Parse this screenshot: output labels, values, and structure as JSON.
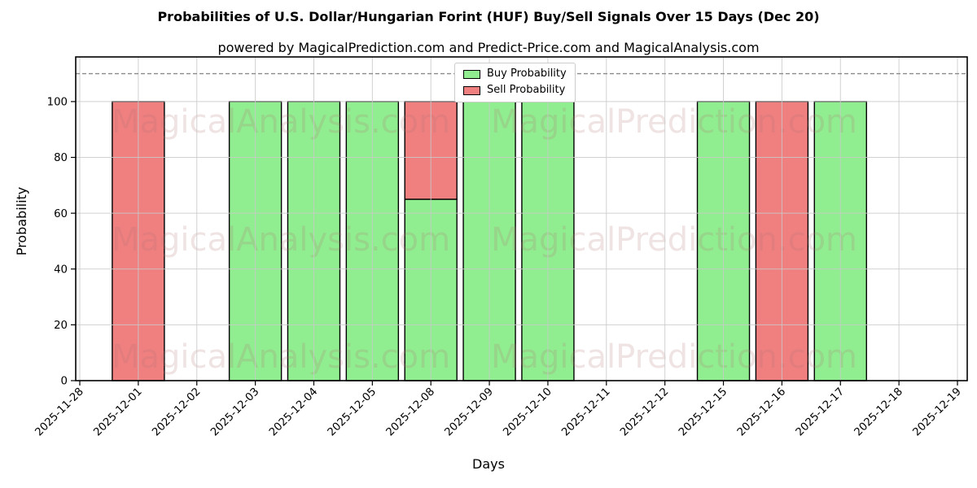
{
  "header": {
    "title": "Probabilities of U.S. Dollar/Hungarian Forint (HUF) Buy/Sell Signals Over 15 Days (Dec 20)",
    "subtitle": "powered by MagicalPrediction.com and Predict-Price.com and MagicalAnalysis.com"
  },
  "chart_data": {
    "type": "bar",
    "stacked": true,
    "title": "Probabilities of U.S. Dollar/Hungarian Forint (HUF) Buy/Sell Signals Over 15 Days (Dec 20)",
    "categories": [
      "2025-11-28",
      "2025-12-01",
      "2025-12-02",
      "2025-12-03",
      "2025-12-04",
      "2025-12-05",
      "2025-12-08",
      "2025-12-09",
      "2025-12-10",
      "2025-12-11",
      "2025-12-12",
      "2025-12-15",
      "2025-12-16",
      "2025-12-17",
      "2025-12-18",
      "2025-12-19"
    ],
    "series": [
      {
        "name": "Buy Probability",
        "color": "#90ee90",
        "values": [
          0,
          0,
          0,
          100,
          100,
          100,
          65,
          100,
          100,
          0,
          0,
          100,
          0,
          100,
          0,
          0
        ]
      },
      {
        "name": "Sell Probability",
        "color": "#f08080",
        "values": [
          0,
          100,
          0,
          0,
          0,
          0,
          35,
          0,
          0,
          0,
          0,
          0,
          100,
          0,
          0,
          0
        ]
      }
    ],
    "xlabel": "Days",
    "ylabel": "Probability",
    "ylim": [
      0,
      116
    ],
    "yticks": [
      0,
      20,
      40,
      60,
      80,
      100
    ],
    "dashed_line_y": 110,
    "grid": true,
    "legend_position": "top-center",
    "bar_edge_color": "#000000",
    "grid_color": "#c9c9c9",
    "dashed_line_color": "#8a8a8a",
    "axis_color": "#000000"
  },
  "watermark": {
    "left_text": "MagicalAnalysis.com",
    "right_text": "MagicalPrediction.com",
    "color": "rgba(175,115,115,0.20)"
  }
}
